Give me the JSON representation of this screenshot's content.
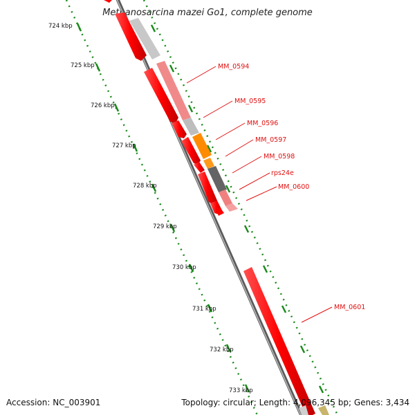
{
  "map": {
    "title": "Methanosarcina mazei Go1, complete genome",
    "accession": "Accession: NC_003901",
    "topology": "Topology: circular; Length: 4,096,345 bp; Genes: 3,434"
  },
  "kbp_ticks": [
    "724 kbp",
    "725 kbp",
    "726 kbp",
    "727 kbp",
    "728 kbp",
    "729 kbp",
    "730 kbp",
    "731 kbp",
    "732 kbp",
    "733 kbp"
  ],
  "gene_labels": [
    "MM_0594",
    "MM_0595",
    "MM_0596",
    "MM_0597",
    "MM_0598",
    "rps24e",
    "MM_0600",
    "MM_0601"
  ],
  "colors": {
    "cds": "#ff0000",
    "gene_pink": "#f08080",
    "gene_gray": "#c0c0c0",
    "gene_orange": "#ff8c00",
    "gene_darkgray": "#606060",
    "ruler_dots": "#1a8a1a",
    "backbone": "#888888",
    "label_red": "#e01010"
  }
}
